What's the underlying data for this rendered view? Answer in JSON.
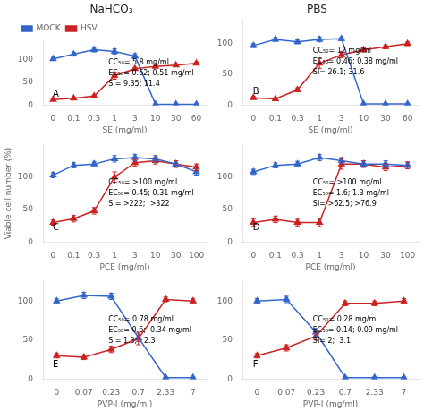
{
  "chart_data": [
    {
      "type": "line",
      "title": "NaHCO₃",
      "x_label": "SE (mg/ml)",
      "categories": [
        "0",
        "0.1",
        "0.3",
        "1",
        "3",
        "10",
        "30",
        "60"
      ],
      "series": [
        {
          "name": "MOCK",
          "color": "#3366cc",
          "marker": "triangle",
          "values": [
            102,
            112,
            122,
            118,
            108,
            2,
            2,
            2
          ],
          "errors": [
            3,
            4,
            5,
            6,
            5,
            1,
            1,
            1
          ]
        },
        {
          "name": "HSV",
          "color": "#cc2222",
          "marker": "triangle",
          "values": [
            12,
            15,
            20,
            65,
            80,
            85,
            88,
            92
          ],
          "errors": [
            2,
            2,
            2,
            8,
            3,
            3,
            3,
            3
          ]
        }
      ],
      "annotations": [
        "A",
        "CC₅₀= 5.8 mg/ml",
        "EC₅₀= 0.62; 0.51 mg/ml",
        "SI= 9.35; 11.4"
      ],
      "ylim": [
        0,
        140
      ],
      "yticks": [
        0,
        50,
        100
      ],
      "grid": false,
      "legend": "upper left"
    },
    {
      "type": "line",
      "title": "PBS",
      "x_label": "SE (mg/ml)",
      "categories": [
        "0",
        "0.1",
        "0.3",
        "1",
        "3",
        "10",
        "30",
        "60"
      ],
      "series": [
        {
          "name": "MOCK",
          "color": "#3366cc",
          "marker": "triangle",
          "values": [
            97,
            107,
            103,
            107,
            108,
            2,
            2,
            2
          ],
          "errors": [
            3,
            3,
            3,
            4,
            3,
            1,
            1,
            1
          ]
        },
        {
          "name": "HSV",
          "color": "#cc2222",
          "marker": "triangle",
          "values": [
            12,
            10,
            25,
            68,
            82,
            90,
            95,
            100
          ],
          "errors": [
            2,
            2,
            3,
            8,
            5,
            3,
            3,
            3
          ]
        }
      ],
      "annotations": [
        "B",
        "CC₅₀= 12 mg/ml",
        "EC₅₀= 0.46; 0.38 mg/ml",
        "SI= 26.1; 31.6"
      ],
      "ylim": [
        0,
        140
      ],
      "yticks": [
        0,
        50,
        100
      ],
      "grid": false
    },
    {
      "type": "line",
      "x_label": "PCE (mg/ml)",
      "y_label": "Viable cell number (%)",
      "categories": [
        "0",
        "0.1",
        "0.3",
        "1",
        "3",
        "10",
        "30",
        "100"
      ],
      "series": [
        {
          "name": "MOCK",
          "color": "#3366cc",
          "marker": "triangle",
          "values": [
            103,
            118,
            120,
            128,
            130,
            128,
            120,
            108
          ],
          "errors": [
            4,
            4,
            4,
            5,
            5,
            5,
            5,
            5
          ]
        },
        {
          "name": "HSV",
          "color": "#cc2222",
          "marker": "triangle",
          "values": [
            30,
            36,
            48,
            100,
            122,
            125,
            120,
            115
          ],
          "errors": [
            4,
            5,
            5,
            8,
            5,
            5,
            5,
            5
          ]
        }
      ],
      "annotations": [
        "C",
        "CC₅₀= >100 mg/ml",
        "EC₅₀= 0.45; 0.31 mg/ml",
        "SI= >222;  >322"
      ],
      "ylim": [
        0,
        150
      ],
      "yticks": [
        0,
        50,
        100
      ],
      "grid": false
    },
    {
      "type": "line",
      "x_label": "PCE (mg/ml)",
      "categories": [
        "0",
        "0.1",
        "0.3",
        "1",
        "3",
        "10",
        "30",
        "100"
      ],
      "series": [
        {
          "name": "MOCK",
          "color": "#3366cc",
          "marker": "triangle",
          "values": [
            108,
            118,
            120,
            130,
            125,
            120,
            120,
            118
          ],
          "errors": [
            4,
            4,
            4,
            5,
            5,
            5,
            5,
            5
          ]
        },
        {
          "name": "HSV",
          "color": "#cc2222",
          "marker": "triangle",
          "values": [
            30,
            35,
            30,
            30,
            120,
            120,
            115,
            118
          ],
          "errors": [
            6,
            5,
            5,
            6,
            8,
            5,
            5,
            5
          ]
        }
      ],
      "annotations": [
        "D",
        "CC₅₀= >100 mg/ml",
        "EC₅₀= 1.6; 1.3 mg/ml",
        "SI= >62.5; >76.9"
      ],
      "ylim": [
        0,
        150
      ],
      "yticks": [
        0,
        50,
        100
      ],
      "grid": false
    },
    {
      "type": "line",
      "x_label": "PVP-I (mg/ml)",
      "categories": [
        "0",
        "0.07",
        "0.23",
        "0.7",
        "2.33",
        "7"
      ],
      "series": [
        {
          "name": "MOCK",
          "color": "#3366cc",
          "marker": "triangle",
          "values": [
            100,
            107,
            106,
            53,
            2,
            2
          ],
          "errors": [
            3,
            4,
            4,
            5,
            1,
            1
          ]
        },
        {
          "name": "HSV",
          "color": "#cc2222",
          "marker": "triangle",
          "values": [
            30,
            28,
            38,
            52,
            102,
            100
          ],
          "errors": [
            3,
            3,
            4,
            8,
            3,
            3
          ]
        }
      ],
      "annotations": [
        "E",
        "CC₅₀= 0.78 mg/ml",
        "EC₅₀= 0.6;  0.34 mg/ml",
        "SI= 1.3;   2.3"
      ],
      "ylim": [
        0,
        125
      ],
      "yticks": [
        0,
        50,
        100
      ],
      "grid": false
    },
    {
      "type": "line",
      "x_label": "PVP-I (mg/ml)",
      "categories": [
        "0",
        "0.07",
        "0.23",
        "0.7",
        "2.33",
        "7"
      ],
      "series": [
        {
          "name": "MOCK",
          "color": "#3366cc",
          "marker": "triangle",
          "values": [
            100,
            102,
            60,
            2,
            2,
            2
          ],
          "errors": [
            3,
            4,
            5,
            1,
            1,
            1
          ]
        },
        {
          "name": "HSV",
          "color": "#cc2222",
          "marker": "triangle",
          "values": [
            30,
            40,
            55,
            97,
            97,
            100
          ],
          "errors": [
            3,
            4,
            5,
            3,
            3,
            3
          ]
        }
      ],
      "annotations": [
        "F",
        "CC₅₀= 0.28 mg/ml",
        "EC₅₀= 0.14; 0.09 mg/ml",
        "SI= 2;  3.1"
      ],
      "ylim": [
        0,
        125
      ],
      "yticks": [
        0,
        50,
        100
      ],
      "grid": false
    }
  ]
}
